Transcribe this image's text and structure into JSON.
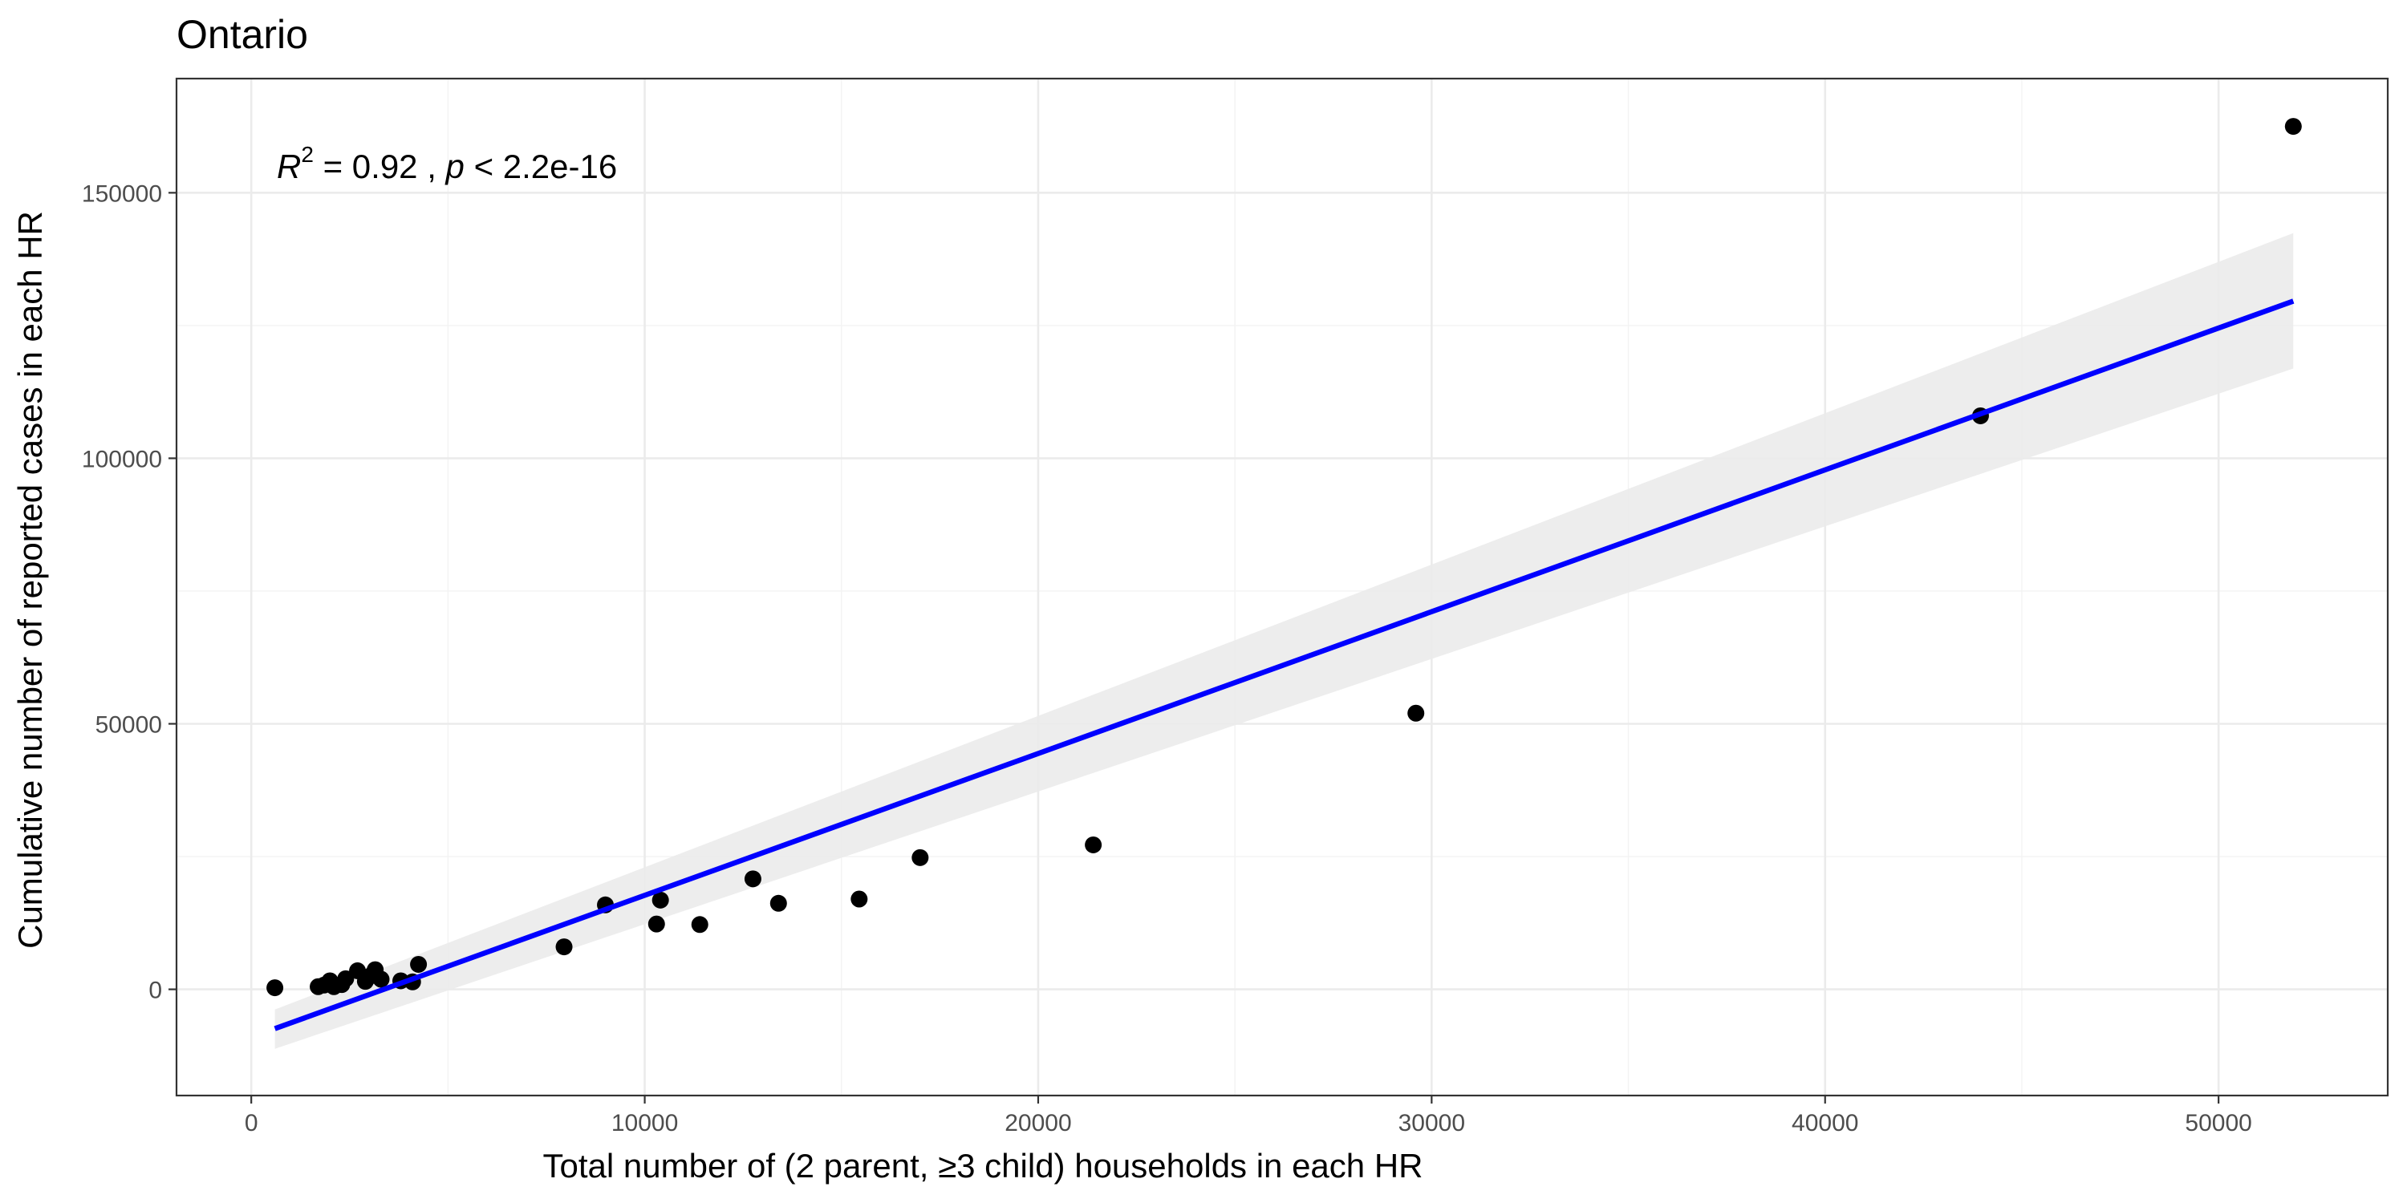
{
  "chart_data": {
    "type": "scatter",
    "title": "Ontario",
    "xlabel": "Total number of (2 parent, ≥3 child) households in each HR",
    "ylabel": "Cumulative number of reported cases in each HR",
    "xlim": [
      -1900,
      54300
    ],
    "ylim": [
      -20000,
      171500
    ],
    "x_ticks": [
      0,
      10000,
      20000,
      30000,
      40000,
      50000
    ],
    "y_ticks": [
      0,
      50000,
      100000,
      150000
    ],
    "x_tick_labels": [
      "0",
      "10000",
      "20000",
      "30000",
      "40000",
      "50000"
    ],
    "y_tick_labels": [
      "0",
      "50000",
      "100000",
      "150000"
    ],
    "grid": true,
    "annotation": {
      "r_symbol": "R",
      "r_superscript": "2",
      "r_value": " = 0.92 , ",
      "p_symbol": "p",
      "p_value": " < 2.2e-16"
    },
    "points": [
      {
        "x": 600,
        "y": 300
      },
      {
        "x": 1700,
        "y": 500
      },
      {
        "x": 1850,
        "y": 800
      },
      {
        "x": 2000,
        "y": 1600
      },
      {
        "x": 2100,
        "y": 500
      },
      {
        "x": 2300,
        "y": 900
      },
      {
        "x": 2400,
        "y": 2000
      },
      {
        "x": 2700,
        "y": 3500
      },
      {
        "x": 2900,
        "y": 1500
      },
      {
        "x": 3000,
        "y": 2400
      },
      {
        "x": 3100,
        "y": 3000
      },
      {
        "x": 3150,
        "y": 3700
      },
      {
        "x": 3300,
        "y": 1900
      },
      {
        "x": 3800,
        "y": 1600
      },
      {
        "x": 4100,
        "y": 1400
      },
      {
        "x": 4250,
        "y": 4700
      },
      {
        "x": 7950,
        "y": 8000
      },
      {
        "x": 9000,
        "y": 15900
      },
      {
        "x": 10300,
        "y": 12300
      },
      {
        "x": 10400,
        "y": 16800
      },
      {
        "x": 11400,
        "y": 12200
      },
      {
        "x": 12750,
        "y": 20800
      },
      {
        "x": 13400,
        "y": 16200
      },
      {
        "x": 15450,
        "y": 17000
      },
      {
        "x": 17000,
        "y": 24800
      },
      {
        "x": 21400,
        "y": 27200
      },
      {
        "x": 29600,
        "y": 52000
      },
      {
        "x": 43950,
        "y": 108000
      },
      {
        "x": 51900,
        "y": 162500
      }
    ],
    "fit": {
      "x0": 600,
      "y0": -7400,
      "x1": 51900,
      "y1": 129600,
      "ci_lower_y0": -11200,
      "ci_upper_y0": -3800,
      "ci_lower_y1": 116900,
      "ci_upper_y1": 142400
    },
    "colors": {
      "points": "#000000",
      "line": "#0000ff",
      "band": "#ebebeb",
      "panel_border": "#333333"
    }
  }
}
